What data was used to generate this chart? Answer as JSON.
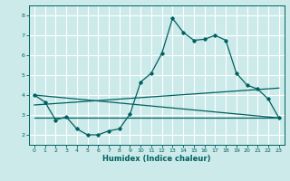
{
  "xlabel": "Humidex (Indice chaleur)",
  "bg_color": "#cceaea",
  "grid_color": "#ffffff",
  "line_color": "#006060",
  "xlim": [
    -0.5,
    23.5
  ],
  "ylim": [
    1.5,
    8.5
  ],
  "yticks": [
    2,
    3,
    4,
    5,
    6,
    7,
    8
  ],
  "xticks": [
    0,
    1,
    2,
    3,
    4,
    5,
    6,
    7,
    8,
    9,
    10,
    11,
    12,
    13,
    14,
    15,
    16,
    17,
    18,
    19,
    20,
    21,
    22,
    23
  ],
  "main_x": [
    0,
    1,
    2,
    3,
    4,
    5,
    6,
    7,
    8,
    9,
    10,
    11,
    12,
    13,
    14,
    15,
    16,
    17,
    18,
    19,
    20,
    21,
    22,
    23
  ],
  "main_y": [
    4.0,
    3.65,
    2.75,
    2.9,
    2.3,
    2.0,
    2.0,
    2.2,
    2.3,
    3.05,
    4.65,
    5.1,
    6.1,
    7.85,
    7.15,
    6.75,
    6.8,
    7.0,
    6.75,
    5.1,
    4.5,
    4.3,
    3.8,
    2.85
  ],
  "line1_x": [
    0,
    23
  ],
  "line1_y": [
    4.0,
    2.85
  ],
  "line2_x": [
    0,
    23
  ],
  "line2_y": [
    3.5,
    4.35
  ],
  "line3_x": [
    0,
    23
  ],
  "line3_y": [
    2.85,
    2.85
  ]
}
